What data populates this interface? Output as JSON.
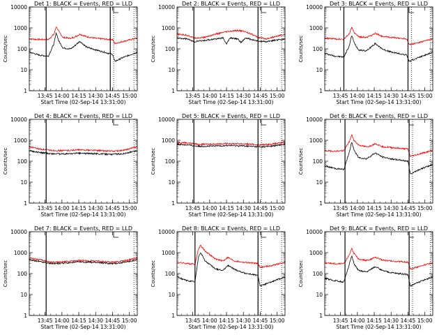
{
  "figure": {
    "background": "#ffffff",
    "colors": {
      "events": "#000000",
      "lld": "#ff0000",
      "axes": "#000000"
    }
  },
  "chart_data": [
    {
      "type": "line",
      "title": "Det 1: BLACK = Events, RED = LLD",
      "xlabel": "Start Time (02-Sep-14 13:31:00)",
      "ylabel": "Counts/sec",
      "yscale": "log",
      "ylim": [
        1,
        10000
      ],
      "xlim": [
        "13:31:00",
        "15:07:00"
      ],
      "x_ticks": [
        "13:45",
        "14:00",
        "14:15",
        "14:30",
        "14:45",
        "15:00"
      ],
      "y_ticks": [
        "1",
        "10",
        "100",
        "1000",
        "10000"
      ],
      "solid_markers": [
        "13:46:00",
        "14:43:00"
      ],
      "dotted_markers": [
        "14:46:00",
        "15:04:00"
      ],
      "series": [
        {
          "name": "LLD",
          "color": "#ff0000",
          "x": [
            "13:31:00",
            "13:40:00",
            "13:48:00",
            "13:53:00",
            "13:55:00",
            "13:57:00",
            "14:01:00",
            "14:08:00",
            "14:12:00",
            "14:16:00",
            "14:22:00",
            "14:30:00",
            "14:42:00",
            "14:45:00",
            "14:47:00",
            "14:55:00",
            "15:07:00"
          ],
          "values": [
            300,
            280,
            280,
            500,
            1200,
            700,
            350,
            320,
            380,
            500,
            380,
            320,
            280,
            280,
            180,
            230,
            330
          ]
        },
        {
          "name": "Events",
          "color": "#000000",
          "x": [
            "13:31:00",
            "13:40:00",
            "13:48:00",
            "13:53:00",
            "13:55:00",
            "13:57:00",
            "14:01:00",
            "14:08:00",
            "14:12:00",
            "14:16:00",
            "14:22:00",
            "14:30:00",
            "14:42:00",
            "14:45:00",
            "14:47:00",
            "14:55:00",
            "15:07:00"
          ],
          "values": [
            70,
            50,
            45,
            180,
            600,
            250,
            110,
            100,
            150,
            230,
            120,
            90,
            60,
            55,
            25,
            40,
            70
          ]
        }
      ]
    },
    {
      "type": "line",
      "title": "Det 2: BLACK = Events, RED = LLD",
      "xlabel": "Start Time (02-Sep-14 13:31:00)",
      "ylabel": "Counts/sec",
      "yscale": "log",
      "ylim": [
        1,
        10000
      ],
      "xlim": [
        "13:31:00",
        "15:07:00"
      ],
      "x_ticks": [
        "13:45",
        "14:00",
        "14:15",
        "14:30",
        "14:45",
        "15:00"
      ],
      "y_ticks": [
        "1",
        "10",
        "100",
        "1000",
        "10000"
      ],
      "solid_markers": [
        "13:46:00",
        "14:43:00"
      ],
      "dotted_markers": [
        "14:46:00",
        "15:04:00"
      ],
      "series": [
        {
          "name": "LLD",
          "color": "#ff0000",
          "x": [
            "13:31:00",
            "13:40:00",
            "13:46:00",
            "13:55:00",
            "14:05:00",
            "14:15:00",
            "14:20:00",
            "14:25:00",
            "14:30:00",
            "14:36:00",
            "14:43:00",
            "14:50:00",
            "15:07:00"
          ],
          "values": [
            500,
            450,
            330,
            350,
            500,
            650,
            700,
            750,
            700,
            550,
            350,
            300,
            500
          ]
        },
        {
          "name": "Events",
          "color": "#000000",
          "x": [
            "13:31:00",
            "13:40:00",
            "13:46:00",
            "13:55:00",
            "14:05:00",
            "14:12:00",
            "14:15:00",
            "14:18:00",
            "14:25:00",
            "14:28:00",
            "14:32:00",
            "14:43:00",
            "14:50:00",
            "15:07:00"
          ],
          "values": [
            330,
            300,
            220,
            250,
            300,
            330,
            170,
            330,
            300,
            200,
            330,
            230,
            220,
            300
          ]
        }
      ]
    },
    {
      "type": "line",
      "title": "Det 3: BLACK = Events, RED = LLD",
      "xlabel": "Start Time (02-Sep-14 13:31:00)",
      "ylabel": "Counts/sec",
      "yscale": "log",
      "ylim": [
        1,
        10000
      ],
      "xlim": [
        "13:31:00",
        "15:07:00"
      ],
      "x_ticks": [
        "13:45",
        "14:00",
        "14:15",
        "14:30",
        "14:45",
        "15:00"
      ],
      "y_ticks": [
        "1",
        "10",
        "100",
        "1000",
        "10000"
      ],
      "solid_markers": [
        "13:48:00",
        "14:45:00"
      ],
      "dotted_markers": [
        "14:48:00",
        "15:05:00"
      ],
      "series": [
        {
          "name": "LLD",
          "color": "#ff0000",
          "x": [
            "13:31:00",
            "13:40:00",
            "13:48:00",
            "13:53:00",
            "13:55:00",
            "13:57:00",
            "14:01:00",
            "14:08:00",
            "14:12:00",
            "14:16:00",
            "14:22:00",
            "14:30:00",
            "14:44:00",
            "14:46:00",
            "14:55:00",
            "15:07:00"
          ],
          "values": [
            320,
            300,
            290,
            550,
            1100,
            600,
            380,
            350,
            420,
            550,
            400,
            350,
            300,
            160,
            200,
            300
          ]
        },
        {
          "name": "Events",
          "color": "#000000",
          "x": [
            "13:31:00",
            "13:40:00",
            "13:48:00",
            "13:53:00",
            "13:55:00",
            "13:57:00",
            "14:01:00",
            "14:08:00",
            "14:12:00",
            "14:16:00",
            "14:22:00",
            "14:30:00",
            "14:44:00",
            "14:46:00",
            "14:55:00",
            "15:07:00"
          ],
          "values": [
            60,
            45,
            40,
            150,
            450,
            200,
            90,
            80,
            120,
            180,
            100,
            70,
            50,
            25,
            40,
            70
          ]
        }
      ]
    },
    {
      "type": "line",
      "title": "Det 4: BLACK = Events, RED = LLD",
      "xlabel": "Start Time (02-Sep-14 13:31:00)",
      "ylabel": "Counts/sec",
      "yscale": "log",
      "ylim": [
        1,
        10000
      ],
      "xlim": [
        "13:31:00",
        "15:07:00"
      ],
      "x_ticks": [
        "13:45",
        "14:00",
        "14:15",
        "14:30",
        "14:45",
        "15:00"
      ],
      "y_ticks": [
        "1",
        "10",
        "100",
        "1000",
        "10000"
      ],
      "solid_markers": [
        "13:46:00"
      ],
      "dotted_markers": [
        "15:04:00"
      ],
      "series": [
        {
          "name": "LLD",
          "color": "#ff0000",
          "x": [
            "13:31:00",
            "13:40:00",
            "13:50:00",
            "14:00:00",
            "14:15:00",
            "14:30:00",
            "14:45:00",
            "14:55:00",
            "15:07:00"
          ],
          "values": [
            500,
            380,
            330,
            320,
            350,
            330,
            300,
            330,
            500
          ]
        },
        {
          "name": "Events",
          "color": "#000000",
          "x": [
            "13:31:00",
            "13:40:00",
            "13:50:00",
            "14:00:00",
            "14:15:00",
            "14:30:00",
            "14:45:00",
            "14:55:00",
            "15:07:00"
          ],
          "values": [
            320,
            260,
            230,
            220,
            240,
            230,
            210,
            230,
            320
          ]
        }
      ]
    },
    {
      "type": "line",
      "title": "Det 5: BLACK = Events, RED = LLD",
      "xlabel": "Start Time (02-Sep-14 13:31:00)",
      "ylabel": "Counts/sec",
      "yscale": "log",
      "ylim": [
        1,
        10000
      ],
      "xlim": [
        "13:31:00",
        "15:07:00"
      ],
      "x_ticks": [
        "13:45",
        "14:00",
        "14:15",
        "14:30",
        "14:45",
        "15:00"
      ],
      "y_ticks": [
        "1",
        "10",
        "100",
        "1000",
        "10000"
      ],
      "solid_markers": [
        "13:46:00",
        "14:43:00"
      ],
      "dotted_markers": [
        "14:46:00",
        "15:04:00"
      ],
      "series": [
        {
          "name": "LLD",
          "color": "#ff0000",
          "x": [
            "13:31:00",
            "13:40:00",
            "13:50:00",
            "14:00:00",
            "14:15:00",
            "14:30:00",
            "14:45:00",
            "14:55:00",
            "15:07:00"
          ],
          "values": [
            800,
            750,
            650,
            650,
            700,
            680,
            600,
            650,
            800
          ]
        },
        {
          "name": "Events",
          "color": "#000000",
          "x": [
            "13:31:00",
            "13:40:00",
            "13:50:00",
            "14:00:00",
            "14:15:00",
            "14:30:00",
            "14:45:00",
            "14:55:00",
            "15:07:00"
          ],
          "values": [
            650,
            600,
            520,
            520,
            560,
            540,
            480,
            520,
            650
          ]
        }
      ]
    },
    {
      "type": "line",
      "title": "Det 6: BLACK = Events, RED = LLD",
      "xlabel": "Start Time (02-Sep-14 13:31:00)",
      "ylabel": "Counts/sec",
      "yscale": "log",
      "ylim": [
        1,
        10000
      ],
      "xlim": [
        "13:31:00",
        "15:07:00"
      ],
      "x_ticks": [
        "13:45",
        "14:00",
        "14:15",
        "14:30",
        "14:45",
        "15:00"
      ],
      "y_ticks": [
        "1",
        "10",
        "100",
        "1000",
        "10000"
      ],
      "solid_markers": [
        "13:49:00",
        "14:46:00"
      ],
      "dotted_markers": [
        "14:49:00",
        "15:05:00"
      ],
      "series": [
        {
          "name": "LLD",
          "color": "#ff0000",
          "x": [
            "13:31:00",
            "13:40:00",
            "13:48:00",
            "13:53:00",
            "13:55:00",
            "13:57:00",
            "14:01:00",
            "14:08:00",
            "14:12:00",
            "14:16:00",
            "14:22:00",
            "14:30:00",
            "14:45:00",
            "14:47:00",
            "14:55:00",
            "15:07:00"
          ],
          "values": [
            320,
            300,
            320,
            900,
            1800,
            1000,
            600,
            480,
            550,
            700,
            500,
            450,
            380,
            170,
            220,
            330
          ]
        },
        {
          "name": "Events",
          "color": "#000000",
          "x": [
            "13:31:00",
            "13:40:00",
            "13:48:00",
            "13:53:00",
            "13:55:00",
            "13:57:00",
            "14:01:00",
            "14:08:00",
            "14:12:00",
            "14:16:00",
            "14:22:00",
            "14:30:00",
            "14:45:00",
            "14:47:00",
            "14:55:00",
            "15:07:00"
          ],
          "values": [
            60,
            45,
            40,
            300,
            800,
            350,
            150,
            130,
            180,
            250,
            160,
            130,
            100,
            25,
            40,
            70
          ]
        }
      ]
    },
    {
      "type": "line",
      "title": "Det 7: BLACK = Events, RED = LLD",
      "xlabel": "Start Time (02-Sep-14 13:31:00)",
      "ylabel": "Counts/sec",
      "yscale": "log",
      "ylim": [
        1,
        10000
      ],
      "xlim": [
        "13:31:00",
        "15:07:00"
      ],
      "x_ticks": [
        "13:45",
        "14:00",
        "14:15",
        "14:30",
        "14:45",
        "15:00"
      ],
      "y_ticks": [
        "1",
        "10",
        "100",
        "1000",
        "10000"
      ],
      "solid_markers": [
        "13:46:00"
      ],
      "dotted_markers": [
        "15:04:00"
      ],
      "series": [
        {
          "name": "LLD",
          "color": "#ff0000",
          "x": [
            "13:31:00",
            "13:40:00",
            "13:50:00",
            "14:00:00",
            "14:15:00",
            "14:30:00",
            "14:45:00",
            "14:55:00",
            "15:07:00"
          ],
          "values": [
            550,
            470,
            350,
            360,
            420,
            400,
            350,
            400,
            560
          ]
        },
        {
          "name": "Events",
          "color": "#000000",
          "x": [
            "13:31:00",
            "13:40:00",
            "13:50:00",
            "14:00:00",
            "14:15:00",
            "14:30:00",
            "14:45:00",
            "14:55:00",
            "15:07:00"
          ],
          "values": [
            450,
            380,
            300,
            310,
            360,
            340,
            300,
            340,
            460
          ]
        }
      ]
    },
    {
      "type": "line",
      "title": "Det 8: BLACK = Events, RED = LLD",
      "xlabel": "Start Time (02-Sep-14 13:31:00)",
      "ylabel": "Counts/sec",
      "yscale": "log",
      "ylim": [
        1,
        10000
      ],
      "xlim": [
        "13:31:00",
        "15:07:00"
      ],
      "x_ticks": [
        "13:45",
        "14:00",
        "14:15",
        "14:30",
        "14:45",
        "15:00"
      ],
      "y_ticks": [
        "1",
        "10",
        "100",
        "1000",
        "10000"
      ],
      "solid_markers": [
        "13:47:00",
        "14:43:00"
      ],
      "dotted_markers": [
        "14:46:00",
        "15:04:00"
      ],
      "series": [
        {
          "name": "LLD",
          "color": "#ff0000",
          "x": [
            "13:31:00",
            "13:40:00",
            "13:47:00",
            "13:50:00",
            "13:52:00",
            "13:56:00",
            "14:05:00",
            "14:12:00",
            "14:16:00",
            "14:22:00",
            "14:30:00",
            "14:43:00",
            "14:45:00",
            "14:55:00",
            "15:07:00"
          ],
          "values": [
            350,
            300,
            280,
            1500,
            2200,
            1200,
            500,
            400,
            600,
            400,
            350,
            300,
            200,
            240,
            350
          ]
        },
        {
          "name": "Events",
          "color": "#000000",
          "x": [
            "13:31:00",
            "13:40:00",
            "13:47:00",
            "13:50:00",
            "13:52:00",
            "13:56:00",
            "14:05:00",
            "14:12:00",
            "14:16:00",
            "14:22:00",
            "14:30:00",
            "14:43:00",
            "14:45:00",
            "14:55:00",
            "15:07:00"
          ],
          "values": [
            70,
            45,
            40,
            600,
            1000,
            400,
            170,
            140,
            250,
            160,
            110,
            80,
            25,
            40,
            70
          ]
        }
      ]
    },
    {
      "type": "line",
      "title": "Det 9: BLACK = Events, RED = LLD",
      "xlabel": "Start Time (02-Sep-14 13:31:00)",
      "ylabel": "Counts/sec",
      "yscale": "log",
      "ylim": [
        1,
        10000
      ],
      "xlim": [
        "13:31:00",
        "15:07:00"
      ],
      "x_ticks": [
        "13:45",
        "14:00",
        "14:15",
        "14:30",
        "14:45",
        "15:00"
      ],
      "y_ticks": [
        "1",
        "10",
        "100",
        "1000",
        "10000"
      ],
      "solid_markers": [
        "13:49:00",
        "14:46:00"
      ],
      "dotted_markers": [
        "14:49:00",
        "15:05:00"
      ],
      "series": [
        {
          "name": "LLD",
          "color": "#ff0000",
          "x": [
            "13:31:00",
            "13:40:00",
            "13:48:00",
            "13:53:00",
            "13:55:00",
            "13:57:00",
            "14:01:00",
            "14:08:00",
            "14:12:00",
            "14:16:00",
            "14:22:00",
            "14:30:00",
            "14:45:00",
            "14:47:00",
            "14:55:00",
            "15:07:00"
          ],
          "values": [
            320,
            300,
            300,
            800,
            1600,
            900,
            500,
            420,
            480,
            600,
            450,
            400,
            350,
            160,
            220,
            330
          ]
        },
        {
          "name": "Events",
          "color": "#000000",
          "x": [
            "13:31:00",
            "13:40:00",
            "13:48:00",
            "13:53:00",
            "13:55:00",
            "13:57:00",
            "14:01:00",
            "14:08:00",
            "14:12:00",
            "14:16:00",
            "14:22:00",
            "14:30:00",
            "14:45:00",
            "14:47:00",
            "14:55:00",
            "15:07:00"
          ],
          "values": [
            60,
            45,
            40,
            300,
            700,
            300,
            140,
            120,
            160,
            220,
            140,
            110,
            90,
            25,
            40,
            70
          ]
        }
      ]
    }
  ]
}
